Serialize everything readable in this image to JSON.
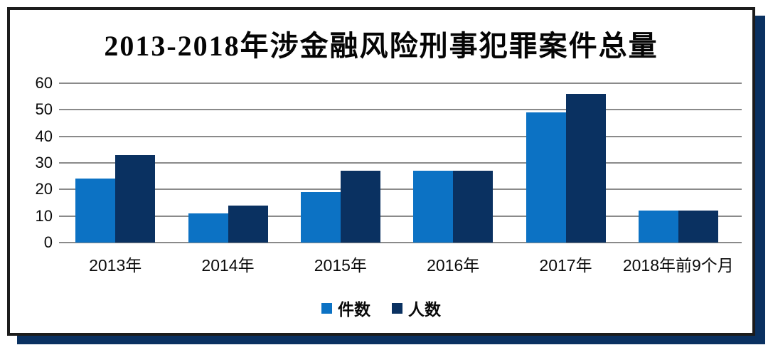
{
  "chart_data": {
    "type": "bar",
    "title": "2013-2018年涉金融风险刑事犯罪案件总量",
    "categories": [
      "2013年",
      "2014年",
      "2015年",
      "2016年",
      "2017年",
      "2018年前9个月"
    ],
    "series": [
      {
        "name": "件数",
        "color": "#0C72C4",
        "values": [
          24,
          11,
          19,
          27,
          49,
          12
        ]
      },
      {
        "name": "人数",
        "color": "#0A3161",
        "values": [
          33,
          14,
          27,
          27,
          56,
          12
        ]
      }
    ],
    "ylim": [
      0,
      60
    ],
    "yticks": [
      0,
      10,
      20,
      30,
      40,
      50,
      60
    ],
    "grid": true,
    "legend_position": "bottom"
  },
  "style": {
    "series1_color": "#0C72C4",
    "series2_color": "#0A3161",
    "grid_color": "#8a8a8a",
    "frame_border_color": "#1c1c1c",
    "shadow_color": "#0A3161",
    "background": "#ffffff",
    "text_color": "#0a0a0a"
  }
}
